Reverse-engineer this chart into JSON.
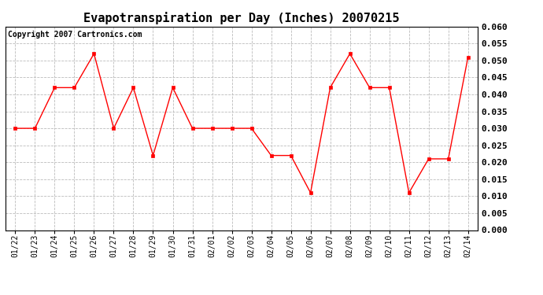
{
  "title": "Evapotranspiration per Day (Inches) 20070215",
  "copyright_text": "Copyright 2007 Cartronics.com",
  "dates": [
    "01/22",
    "01/23",
    "01/24",
    "01/25",
    "01/26",
    "01/27",
    "01/28",
    "01/29",
    "01/30",
    "01/31",
    "02/01",
    "02/02",
    "02/03",
    "02/04",
    "02/05",
    "02/06",
    "02/07",
    "02/08",
    "02/09",
    "02/10",
    "02/11",
    "02/12",
    "02/13",
    "02/14"
  ],
  "values": [
    0.03,
    0.03,
    0.042,
    0.042,
    0.052,
    0.03,
    0.042,
    0.022,
    0.042,
    0.03,
    0.03,
    0.03,
    0.03,
    0.022,
    0.022,
    0.011,
    0.042,
    0.052,
    0.042,
    0.042,
    0.011,
    0.021,
    0.021,
    0.051
  ],
  "line_color": "#ff0000",
  "marker": "s",
  "marker_size": 3,
  "ylim": [
    0.0,
    0.06
  ],
  "ytick_step": 0.005,
  "background_color": "#ffffff",
  "plot_bg_color": "#ffffff",
  "grid_color": "#bbbbbb",
  "title_fontsize": 11,
  "copyright_fontsize": 7,
  "tick_fontsize": 8,
  "x_tick_fontsize": 7
}
